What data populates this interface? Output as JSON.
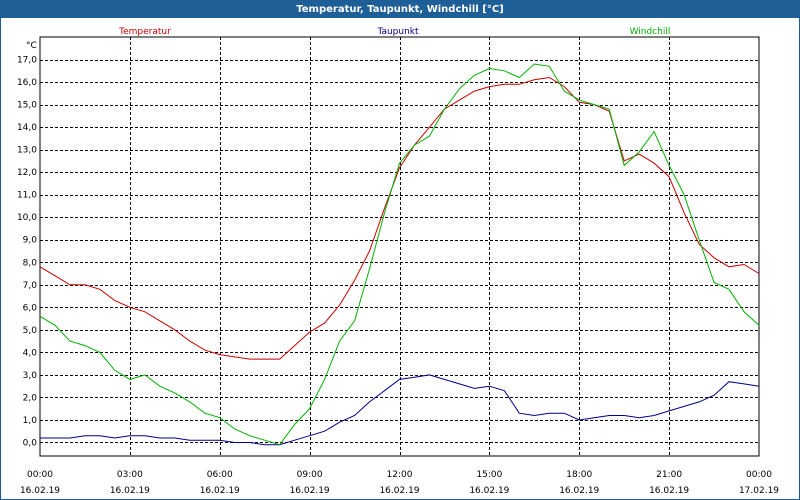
{
  "window": {
    "title": "Temperatur, Taupunkt, Windchill [°C]"
  },
  "chart_data": {
    "type": "line",
    "title": "Temperatur, Taupunkt, Windchill [°C]",
    "ylabel": "°C",
    "ylim": [
      -0.6,
      18.0
    ],
    "xlim": [
      0,
      24
    ],
    "y_ticks": [
      0,
      1,
      2,
      3,
      4,
      5,
      6,
      7,
      8,
      9,
      10,
      11,
      12,
      13,
      14,
      15,
      16,
      17
    ],
    "y_tick_labels": [
      "0,0",
      "1,0",
      "2,0",
      "3,0",
      "4,0",
      "5,0",
      "6,0",
      "7,0",
      "8,0",
      "9,0",
      "10,0",
      "11,0",
      "12,0",
      "13,0",
      "14,0",
      "15,0",
      "16,0",
      "17,0"
    ],
    "x_ticks": [
      0,
      3,
      6,
      9,
      12,
      15,
      18,
      21,
      24
    ],
    "x_tick_times": [
      "00:00",
      "03:00",
      "06:00",
      "09:00",
      "12:00",
      "15:00",
      "18:00",
      "21:00",
      "00:00"
    ],
    "x_tick_dates": [
      "16.02.19",
      "16.02.19",
      "16.02.19",
      "16.02.19",
      "16.02.19",
      "16.02.19",
      "16.02.19",
      "16.02.19",
      "17.02.19"
    ],
    "grid": true,
    "legend": [
      "Temperatur",
      "Taupunkt",
      "Windchill"
    ],
    "series": [
      {
        "name": "Temperatur",
        "color": "#cc0000",
        "x": [
          0,
          0.5,
          1,
          1.5,
          2,
          2.5,
          3,
          3.5,
          4,
          4.5,
          5,
          5.5,
          6,
          6.5,
          7,
          7.5,
          8,
          8.5,
          9,
          9.5,
          10,
          10.5,
          11,
          11.5,
          12,
          12.5,
          13,
          13.5,
          14,
          14.5,
          15,
          15.5,
          16,
          16.5,
          17,
          17.5,
          18,
          18.5,
          19,
          19.5,
          20,
          20.5,
          21,
          21.5,
          22,
          22.5,
          23,
          23.5,
          24
        ],
        "y": [
          7.8,
          7.4,
          7.0,
          7.0,
          6.8,
          6.3,
          6.0,
          5.8,
          5.4,
          5.0,
          4.5,
          4.1,
          3.9,
          3.8,
          3.7,
          3.7,
          3.7,
          4.3,
          4.9,
          5.3,
          6.1,
          7.2,
          8.5,
          10.4,
          12.2,
          13.2,
          14.0,
          14.8,
          15.2,
          15.6,
          15.8,
          15.9,
          15.9,
          16.1,
          16.2,
          15.8,
          15.1,
          15.0,
          14.7,
          12.5,
          12.8,
          12.4,
          11.8,
          10.2,
          8.8,
          8.2,
          7.8,
          7.9,
          7.5
        ]
      },
      {
        "name": "Taupunkt",
        "color": "#00008b",
        "x": [
          0,
          0.5,
          1,
          1.5,
          2,
          2.5,
          3,
          3.5,
          4,
          4.5,
          5,
          5.5,
          6,
          6.5,
          7,
          7.5,
          8,
          8.5,
          9,
          9.5,
          10,
          10.5,
          11,
          11.5,
          12,
          12.5,
          13,
          13.5,
          14,
          14.5,
          15,
          15.5,
          16,
          16.5,
          17,
          17.5,
          18,
          18.5,
          19,
          19.5,
          20,
          20.5,
          21,
          21.5,
          22,
          22.5,
          23,
          23.5,
          24
        ],
        "y": [
          0.2,
          0.2,
          0.2,
          0.3,
          0.3,
          0.2,
          0.3,
          0.3,
          0.2,
          0.2,
          0.1,
          0.1,
          0.1,
          0.0,
          0.0,
          -0.1,
          -0.1,
          0.1,
          0.3,
          0.5,
          0.9,
          1.2,
          1.8,
          2.3,
          2.8,
          2.9,
          3.0,
          2.8,
          2.6,
          2.4,
          2.5,
          2.3,
          1.3,
          1.2,
          1.3,
          1.3,
          1.0,
          1.1,
          1.2,
          1.2,
          1.1,
          1.2,
          1.4,
          1.6,
          1.8,
          2.1,
          2.7,
          2.6,
          2.5
        ]
      },
      {
        "name": "Windchill",
        "color": "#00b300",
        "x": [
          0,
          0.5,
          1,
          1.5,
          2,
          2.5,
          3,
          3.5,
          4,
          4.5,
          5,
          5.5,
          6,
          6.5,
          7,
          7.5,
          8,
          8.5,
          9,
          9.5,
          10,
          10.5,
          11,
          11.5,
          12,
          12.5,
          13,
          13.5,
          14,
          14.5,
          15,
          15.5,
          16,
          16.5,
          17,
          17.5,
          18,
          18.5,
          19,
          19.5,
          20,
          20.5,
          21,
          21.5,
          22,
          22.5,
          23,
          23.5,
          24
        ],
        "y": [
          5.6,
          5.2,
          4.5,
          4.3,
          4.0,
          3.2,
          2.8,
          3.0,
          2.5,
          2.2,
          1.8,
          1.3,
          1.1,
          0.6,
          0.3,
          0.1,
          -0.1,
          0.8,
          1.5,
          2.8,
          4.5,
          5.4,
          7.7,
          10.2,
          12.4,
          13.2,
          13.6,
          14.8,
          15.7,
          16.3,
          16.6,
          16.5,
          16.2,
          16.8,
          16.7,
          15.6,
          15.2,
          15.0,
          14.8,
          12.3,
          12.9,
          13.8,
          12.3,
          11.0,
          9.0,
          7.1,
          6.8,
          5.8,
          5.2
        ]
      }
    ]
  }
}
